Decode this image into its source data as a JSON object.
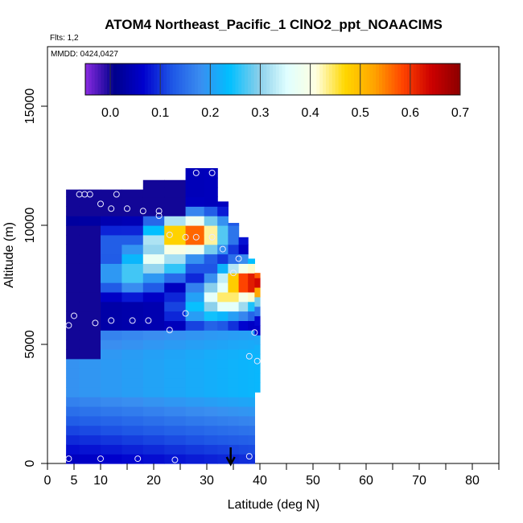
{
  "header": {
    "title": "ATOM4 Northeast_Pacific_1 ClNO2_ppt_NOAACIMS",
    "flights": "Flts: 1,2",
    "dates": "MMDD: 0424,0427"
  },
  "chart_data": {
    "type": "heatmap",
    "title": "ATOM4 Northeast_Pacific_1 ClNO2_ppt_NOAACIMS",
    "xlabel": "Latitude (deg N)",
    "ylabel": "Altitude (m)",
    "xlim": [
      0,
      85
    ],
    "ylim": [
      0,
      17500
    ],
    "x_tick_labels": [
      "0",
      "5",
      "10",
      "20",
      "30",
      "40",
      "50",
      "60",
      "70",
      "80"
    ],
    "x_tick_values": [
      0,
      5,
      10,
      20,
      30,
      40,
      50,
      60,
      70,
      80
    ],
    "y_tick_labels": [
      "0",
      "5000",
      "10000",
      "15000"
    ],
    "y_tick_values": [
      0,
      5000,
      10000,
      15000
    ],
    "colorbar": {
      "min": -0.05,
      "max": 0.7,
      "tick_labels": [
        "0.0",
        "0.1",
        "0.2",
        "0.3",
        "0.4",
        "0.5",
        "0.6",
        "0.7"
      ],
      "tick_values": [
        0.0,
        0.1,
        0.2,
        0.3,
        0.4,
        0.5,
        0.6,
        0.7
      ],
      "colors": [
        "#8a2be2",
        "#00008b",
        "#0000cd",
        "#1e56e6",
        "#3a8ef0",
        "#00bfff",
        "#87ceeb",
        "#e0ffff",
        "#ffffe0",
        "#ffd700",
        "#ffa500",
        "#ff4500",
        "#cc0000",
        "#8b0000"
      ]
    },
    "field_columns": [
      {
        "lat": 4,
        "alt_min": 0,
        "alt_max": 11500
      },
      {
        "lat": 8,
        "alt_min": 0,
        "alt_max": 11500
      },
      {
        "lat": 12,
        "alt_min": 0,
        "alt_max": 11500
      },
      {
        "lat": 16,
        "alt_min": 0,
        "alt_max": 11500
      },
      {
        "lat": 20,
        "alt_min": 0,
        "alt_max": 11900
      },
      {
        "lat": 24,
        "alt_min": 0,
        "alt_max": 11900
      },
      {
        "lat": 28,
        "alt_min": 0,
        "alt_max": 12400
      },
      {
        "lat": 31,
        "alt_min": 0,
        "alt_max": 12400
      },
      {
        "lat": 33,
        "alt_min": 0,
        "alt_max": 11000
      },
      {
        "lat": 35,
        "alt_min": 0,
        "alt_max": 10100
      },
      {
        "lat": 37,
        "alt_min": 0,
        "alt_max": 9500
      },
      {
        "lat": 38.5,
        "alt_min": 0,
        "alt_max": 8600
      },
      {
        "lat": 39.5,
        "alt_min": 3000,
        "alt_max": 8000
      }
    ],
    "features": [
      {
        "lat": 27,
        "alt": 9600,
        "value": 0.6
      },
      {
        "lat": 24,
        "alt": 9300,
        "value": 0.45
      },
      {
        "lat": 21,
        "alt": 8600,
        "value": 0.38
      },
      {
        "lat": 16,
        "alt": 8000,
        "value": 0.28
      },
      {
        "lat": 34,
        "alt": 7000,
        "value": 0.45
      },
      {
        "lat": 38.5,
        "alt": 7600,
        "value": 0.65
      },
      {
        "lat": 31,
        "alt": 6600,
        "value": 0.3
      },
      {
        "lat": 14,
        "alt": 9200,
        "value": 0.15
      }
    ],
    "sample_points": [
      {
        "lat": 4,
        "alt": 200
      },
      {
        "lat": 10,
        "alt": 200
      },
      {
        "lat": 17,
        "alt": 200
      },
      {
        "lat": 24,
        "alt": 150
      },
      {
        "lat": 38,
        "alt": 300
      },
      {
        "lat": 4,
        "alt": 5800
      },
      {
        "lat": 5,
        "alt": 6200
      },
      {
        "lat": 9,
        "alt": 5900
      },
      {
        "lat": 12,
        "alt": 6000
      },
      {
        "lat": 16,
        "alt": 6000
      },
      {
        "lat": 19,
        "alt": 6000
      },
      {
        "lat": 23,
        "alt": 5600
      },
      {
        "lat": 26,
        "alt": 6300
      },
      {
        "lat": 38,
        "alt": 4500
      },
      {
        "lat": 39,
        "alt": 5500
      },
      {
        "lat": 39.5,
        "alt": 4300
      },
      {
        "lat": 6,
        "alt": 11300
      },
      {
        "lat": 7,
        "alt": 11300
      },
      {
        "lat": 8,
        "alt": 11300
      },
      {
        "lat": 10,
        "alt": 10900
      },
      {
        "lat": 13,
        "alt": 11300
      },
      {
        "lat": 12,
        "alt": 10700
      },
      {
        "lat": 15,
        "alt": 10700
      },
      {
        "lat": 18,
        "alt": 10600
      },
      {
        "lat": 21,
        "alt": 10600
      },
      {
        "lat": 21,
        "alt": 10400
      },
      {
        "lat": 23,
        "alt": 9600
      },
      {
        "lat": 26,
        "alt": 9500
      },
      {
        "lat": 28,
        "alt": 9500
      },
      {
        "lat": 31,
        "alt": 9500
      },
      {
        "lat": 33,
        "alt": 9000
      },
      {
        "lat": 36,
        "alt": 8600
      },
      {
        "lat": 35,
        "alt": 8000
      },
      {
        "lat": 28,
        "alt": 12200
      },
      {
        "lat": 31,
        "alt": 12200
      }
    ],
    "arrow_lat": 34.5
  }
}
